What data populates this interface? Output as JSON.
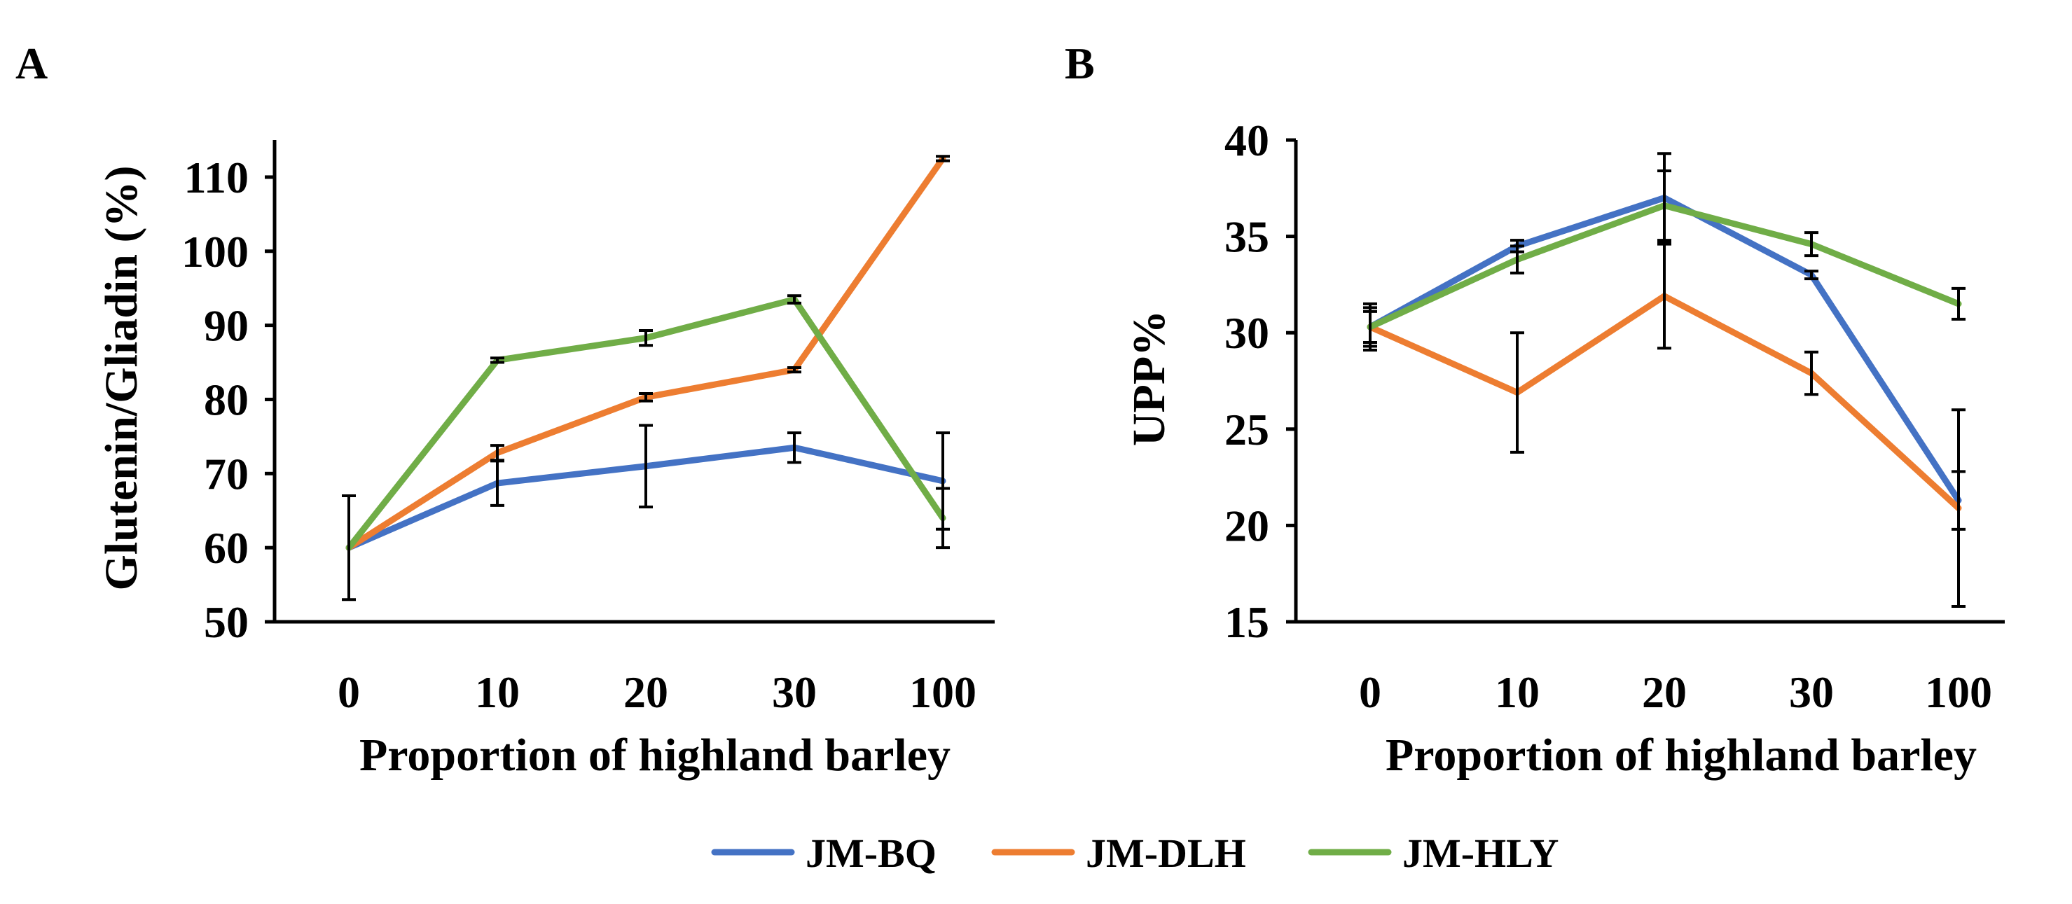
{
  "chart_data": [
    {
      "panel": "A",
      "type": "line",
      "title": "",
      "xlabel": "Proportion of highland barley",
      "ylabel": "Glutenin/Gliadin (%)",
      "categories": [
        "0",
        "10",
        "20",
        "30",
        "100"
      ],
      "ylim": [
        50,
        115
      ],
      "yticks": [
        50,
        60,
        70,
        80,
        90,
        100,
        110
      ],
      "grid": false,
      "series": [
        {
          "name": "JM-BQ",
          "color": "#4472C4",
          "values": [
            60,
            68.7,
            71,
            73.5,
            69
          ],
          "errors": [
            7,
            3,
            5.5,
            2,
            6.5
          ]
        },
        {
          "name": "JM-DLH",
          "color": "#ED7D31",
          "values": [
            60,
            72.8,
            80.3,
            84,
            112.5
          ],
          "errors": [
            0,
            1,
            0.5,
            0.3,
            0.3
          ]
        },
        {
          "name": "JM-HLY",
          "color": "#70AD47",
          "values": [
            60,
            85.3,
            88.3,
            93.5,
            64
          ],
          "errors": [
            0,
            0.3,
            1,
            0.5,
            4
          ]
        }
      ]
    },
    {
      "panel": "B",
      "type": "line",
      "title": "",
      "xlabel": "Proportion of highland barley",
      "ylabel": "UPP%",
      "categories": [
        "0",
        "10",
        "20",
        "30",
        "100"
      ],
      "ylim": [
        15,
        40
      ],
      "yticks": [
        15,
        20,
        25,
        30,
        35,
        40
      ],
      "grid": false,
      "series": [
        {
          "name": "JM-BQ",
          "color": "#4472C4",
          "values": [
            30.3,
            34.5,
            37,
            33,
            21.3
          ],
          "errors": [
            1.2,
            0.3,
            2.3,
            0.2,
            1.5
          ]
        },
        {
          "name": "JM-DLH",
          "color": "#ED7D31",
          "values": [
            30.3,
            26.9,
            31.9,
            27.9,
            20.9
          ],
          "errors": [
            1,
            3.1,
            2.7,
            1.1,
            5.1
          ]
        },
        {
          "name": "JM-HLY",
          "color": "#70AD47",
          "values": [
            30.3,
            33.8,
            36.6,
            34.6,
            31.5
          ],
          "errors": [
            0.8,
            0.7,
            1.8,
            0.6,
            0.8
          ]
        }
      ]
    }
  ],
  "legend": [
    {
      "label": "JM-BQ",
      "color": "#4472C4"
    },
    {
      "label": "JM-DLH",
      "color": "#ED7D31"
    },
    {
      "label": "JM-HLY",
      "color": "#70AD47"
    }
  ]
}
